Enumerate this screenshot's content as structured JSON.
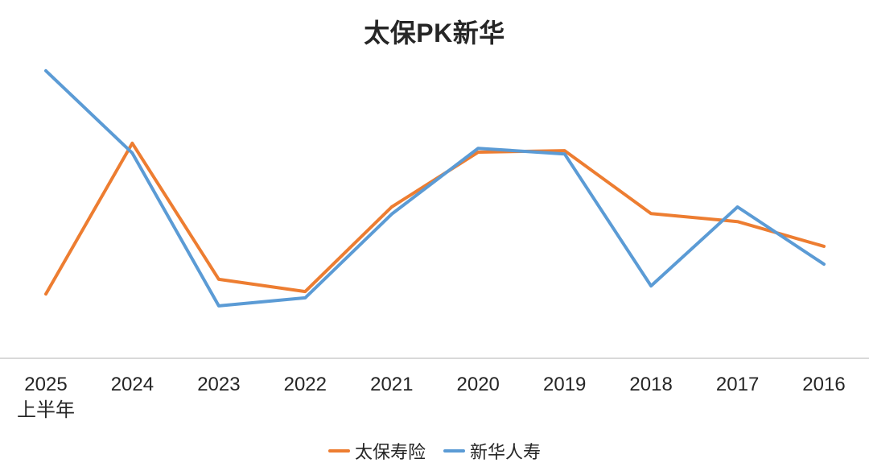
{
  "chart_data": {
    "type": "line",
    "title": "太保PK新华",
    "xlabel": "",
    "ylabel": "",
    "categories": [
      "2025\n上半年",
      "2024",
      "2023",
      "2022",
      "2021",
      "2020",
      "2019",
      "2018",
      "2017",
      "2016"
    ],
    "series": [
      {
        "name": "太保寿险",
        "color": "#ED7D31",
        "values": [
          21.6,
          72.2,
          26.5,
          22.4,
          50.8,
          69.2,
          69.7,
          48.6,
          45.9,
          37.6
        ]
      },
      {
        "name": "新华人寿",
        "color": "#5B9BD5",
        "values": [
          96.5,
          68.9,
          17.6,
          20.3,
          48.4,
          70.5,
          68.6,
          24.3,
          50.8,
          31.6
        ]
      }
    ],
    "ylim": [
      0,
      100
    ],
    "y_axis_visible": false,
    "values_note": "relative scale 0-100 estimated from line positions; no y-axis tick labels are shown in the chart",
    "grid": false,
    "legend_position": "bottom-center",
    "axis_line_color": "#D9D9D9",
    "text_color": "#262626",
    "background_color": "#FFFFFF"
  }
}
